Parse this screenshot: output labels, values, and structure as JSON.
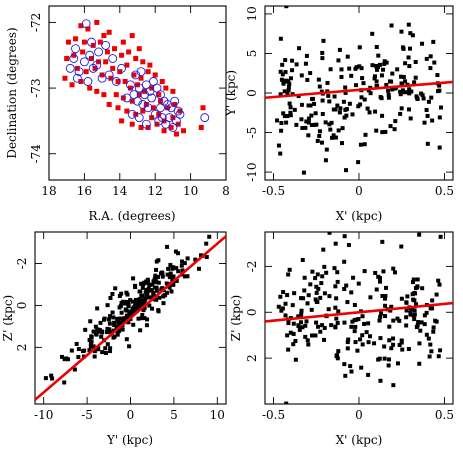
{
  "colors": {
    "red": "#ee0000",
    "blue": "#2020dd",
    "black": "#000000"
  },
  "chart_data": [
    {
      "type": "scatter",
      "xlabel": "R.A. (degrees)",
      "ylabel": "Declination (degrees)",
      "xlim": [
        18,
        8
      ],
      "ylim": [
        -74.4,
        -71.75
      ],
      "xticks": [
        "18",
        "16",
        "14",
        "12",
        "10",
        "8"
      ],
      "yticks": [
        "-72",
        "-73",
        "-74"
      ],
      "series": [
        {
          "marker": "filled-square",
          "color": "#ee0000",
          "x": [
            16.2,
            15.8,
            15.3,
            14.9,
            14.6,
            13.8,
            13.3,
            12.9,
            16.9,
            16.5,
            16.0,
            15.5,
            15.1,
            14.7,
            14.3,
            13.9,
            13.5,
            13.1,
            12.7,
            12.3,
            17.0,
            16.6,
            16.1,
            15.6,
            15.2,
            14.8,
            14.4,
            14.0,
            13.6,
            13.2,
            12.8,
            12.4,
            12.0,
            11.6,
            16.4,
            15.9,
            15.4,
            15.0,
            14.5,
            14.1,
            13.7,
            13.4,
            13.0,
            12.6,
            12.2,
            11.8,
            11.4,
            11.0,
            17.1,
            16.7,
            16.2,
            15.7,
            15.3,
            14.9,
            14.2,
            13.8,
            13.3,
            12.9,
            12.5,
            12.1,
            11.7,
            11.3,
            10.9,
            10.6,
            14.6,
            14.1,
            13.6,
            13.1,
            12.7,
            12.2,
            11.8,
            11.5,
            11.0,
            10.7,
            13.9,
            13.3,
            12.8,
            12.4,
            11.9,
            11.5,
            11.1,
            10.8,
            10.4,
            9.3,
            9.4
          ],
          "y": [
            -72.05,
            -72.1,
            -72.0,
            -72.2,
            -72.15,
            -72.3,
            -72.2,
            -72.4,
            -72.3,
            -72.25,
            -72.3,
            -72.35,
            -72.3,
            -72.45,
            -72.4,
            -72.5,
            -72.45,
            -72.55,
            -72.6,
            -72.65,
            -72.55,
            -72.5,
            -72.45,
            -72.55,
            -72.6,
            -72.6,
            -72.7,
            -72.75,
            -72.65,
            -72.8,
            -72.85,
            -72.75,
            -72.8,
            -72.9,
            -72.7,
            -72.75,
            -72.7,
            -72.8,
            -72.85,
            -72.9,
            -72.9,
            -73.0,
            -72.95,
            -73.05,
            -73.0,
            -73.1,
            -73.0,
            -73.05,
            -72.85,
            -72.95,
            -72.9,
            -73.0,
            -73.05,
            -73.1,
            -73.1,
            -73.15,
            -73.2,
            -73.1,
            -73.25,
            -73.3,
            -73.2,
            -73.3,
            -73.25,
            -73.35,
            -73.25,
            -73.3,
            -73.35,
            -73.4,
            -73.35,
            -73.45,
            -73.4,
            -73.5,
            -73.45,
            -73.55,
            -73.5,
            -73.55,
            -73.6,
            -73.6,
            -73.55,
            -73.65,
            -73.6,
            -73.7,
            -73.65,
            -73.3,
            -73.6
          ]
        },
        {
          "marker": "open-circle",
          "color": "#2020dd",
          "x": [
            15.9,
            15.6,
            16.5,
            15.2,
            14.8,
            15.7,
            16.0,
            14.4,
            15.3,
            16.6,
            16.8,
            16.3,
            15.5,
            14.6,
            13.9,
            15.0,
            14.2,
            13.4,
            16.4,
            15.8,
            13.1,
            12.8,
            12.5,
            12.9,
            12.1,
            12.6,
            12.3,
            11.9,
            12.2,
            11.7,
            13.0,
            13.6,
            12.7,
            12.4,
            11.5,
            11.3,
            11.1,
            10.9,
            10.7,
            13.3,
            12.9,
            12.0,
            11.6,
            11.8,
            11.2,
            10.8,
            11.4,
            13.2,
            12.5,
            11.0,
            10.6,
            9.2,
            11.7
          ],
          "y": [
            -72.02,
            -72.3,
            -72.4,
            -72.45,
            -72.35,
            -72.5,
            -72.6,
            -72.55,
            -72.65,
            -72.55,
            -72.7,
            -72.75,
            -72.7,
            -72.8,
            -72.7,
            -72.85,
            -72.9,
            -72.95,
            -72.85,
            -72.9,
            -72.8,
            -72.75,
            -72.95,
            -73.0,
            -72.9,
            -73.1,
            -73.05,
            -73.0,
            -73.15,
            -73.1,
            -73.2,
            -73.15,
            -73.25,
            -73.3,
            -73.2,
            -73.25,
            -73.3,
            -73.2,
            -73.35,
            -73.4,
            -73.45,
            -73.4,
            -73.45,
            -73.5,
            -73.45,
            -73.5,
            -73.55,
            -73.1,
            -73.55,
            -73.6,
            -73.4,
            -73.45,
            -73.3
          ]
        }
      ]
    },
    {
      "type": "scatter",
      "xlabel": "X' (kpc)",
      "ylabel": "Y' (kpc)",
      "xlim": [
        -0.55,
        0.55
      ],
      "ylim": [
        -11,
        11
      ],
      "xticks": [
        "-0.5",
        "0",
        "0.5"
      ],
      "yticks": [
        "10",
        "5",
        "0",
        "-5",
        "-10"
      ],
      "fit_line": {
        "x": [
          -0.55,
          0.55
        ],
        "y": [
          -0.6,
          1.4
        ]
      },
      "points_seed": 11,
      "points_count": 240
    },
    {
      "type": "scatter",
      "xlabel": "Y' (kpc)",
      "ylabel": "Z' (kpc)",
      "xlim": [
        -11,
        11
      ],
      "ylim": [
        4.7,
        -3.5
      ],
      "xticks": [
        "-10",
        "-5",
        "0",
        "5",
        "10"
      ],
      "yticks": [
        "-2",
        "0",
        "2"
      ],
      "fit_line": {
        "x": [
          -11,
          11
        ],
        "y": [
          4.5,
          -3.3
        ]
      },
      "points_seed": 23,
      "points_count": 260
    },
    {
      "type": "scatter",
      "xlabel": "X' (kpc)",
      "ylabel": "Z' (kpc)",
      "xlim": [
        -0.55,
        0.55
      ],
      "ylim": [
        4.0,
        -3.5
      ],
      "xticks": [
        "-0.5",
        "0",
        "0.5"
      ],
      "yticks": [
        "-2",
        "0",
        "2"
      ],
      "fit_line": {
        "x": [
          -0.55,
          0.55
        ],
        "y": [
          0.4,
          -0.4
        ]
      },
      "points_seed": 37,
      "points_count": 240
    }
  ]
}
